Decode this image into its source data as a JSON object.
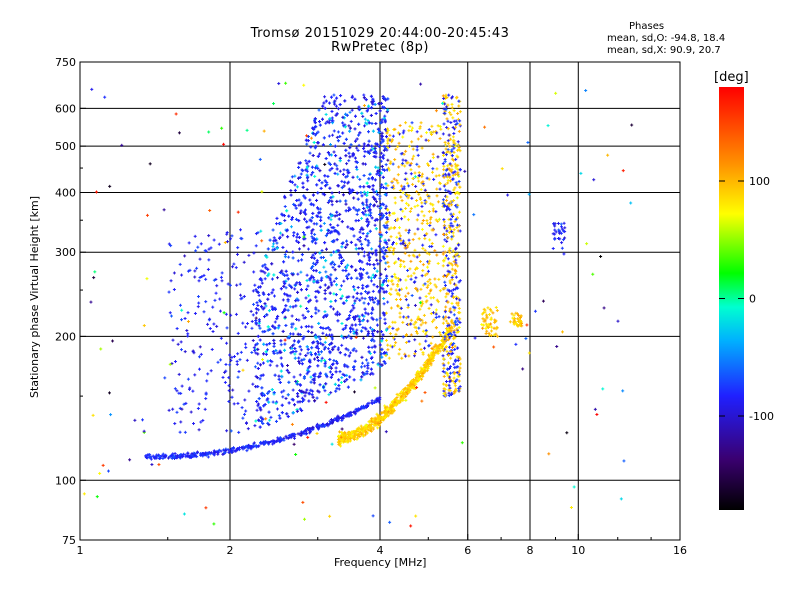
{
  "chart_data": {
    "type": "scatter",
    "title": "Tromsø 20151029 20:44:00-20:45:43",
    "subtitle": "RwPretec (8p)",
    "xlabel": "Frequency [MHz]",
    "ylabel": "Stationary phase Virtual Height [km]",
    "x_scale": "log",
    "y_scale": "log",
    "xlim": [
      1,
      16
    ],
    "ylim": [
      75,
      750
    ],
    "x_ticks": [
      1,
      2,
      4,
      6,
      8,
      10,
      16
    ],
    "x_ticklabels": [
      "1",
      "2",
      "4",
      "6",
      "8",
      "10",
      "16"
    ],
    "x_grid": [
      2,
      4,
      6,
      8,
      10
    ],
    "y_ticks": [
      75,
      100,
      200,
      300,
      400,
      500,
      600,
      750
    ],
    "y_ticklabels": [
      "75",
      "100",
      "200",
      "300",
      "400",
      "500",
      "600",
      "750"
    ],
    "y_grid": [
      100,
      200,
      300,
      400,
      500,
      600
    ],
    "grid": true,
    "colorbar": {
      "label": "[deg]",
      "range": [
        -180,
        180
      ],
      "ticks": [
        100,
        0,
        -100
      ],
      "ticklabels": [
        "100",
        "0",
        "-100"
      ]
    },
    "phase_stats": {
      "header": "Phases",
      "o_line": "mean, sd,O: -94.8, 18.4",
      "x_line": "mean, sd,X:  90.9, 20.7"
    },
    "series": [
      {
        "type": "trace",
        "values_approx": [
          [
            1.35,
            115
          ],
          [
            1.6,
            113
          ],
          [
            2.0,
            115
          ],
          [
            2.5,
            118
          ],
          [
            3.0,
            125
          ],
          [
            3.5,
            135
          ],
          [
            4.0,
            150
          ],
          [
            4.5,
            175
          ],
          [
            5.0,
            200
          ],
          [
            5.5,
            240
          ]
        ]
      },
      {
        "type": "cluster",
        "values_approx": [
          [
            2.5,
            200
          ],
          [
            3.0,
            250
          ],
          [
            3.2,
            290
          ],
          [
            3.5,
            280
          ],
          [
            3.8,
            350
          ],
          [
            4.0,
            450
          ],
          [
            3.2,
            630
          ]
        ]
      },
      {
        "type": "cluster",
        "values_approx": [
          [
            4.5,
            300
          ],
          [
            5.0,
            400
          ],
          [
            5.5,
            500
          ],
          [
            5.8,
            600
          ],
          [
            6.6,
            210
          ],
          [
            7.5,
            220
          ]
        ]
      },
      {
        "type": "scattered",
        "values_approx": [
          [
            1.05,
            620
          ],
          [
            1.1,
            400
          ],
          [
            1.3,
            320
          ],
          [
            1.5,
            230
          ],
          [
            8.5,
            500
          ],
          [
            9.0,
            330
          ],
          [
            11.0,
            500
          ],
          [
            12.0,
            600
          ],
          [
            1.6,
            88
          ],
          [
            1.5,
            80
          ]
        ]
      }
    ]
  }
}
